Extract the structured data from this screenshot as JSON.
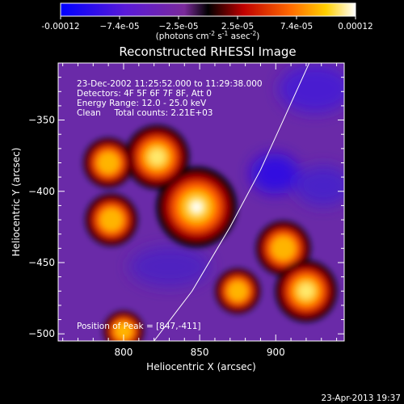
{
  "colorbar": {
    "tick_labels": [
      "-0.00012",
      "−7.4e-05",
      "−2.5e-05",
      "2.5e-05",
      "7.4e-05",
      "0.00012"
    ],
    "units_label": "(photons cm",
    "units_exp1": "-2",
    "units_mid": " s",
    "units_exp2": "-1",
    "units_tail": " asec",
    "units_exp3": "-2",
    "units_close": ")"
  },
  "chart_data": {
    "type": "heatmap",
    "title": "Reconstructed RHESSI Image",
    "xlabel": "Heliocentric X (arcsec)",
    "ylabel": "Heliocentric Y (arcsec)",
    "xlim": [
      757,
      945
    ],
    "ylim": [
      -505,
      -310
    ],
    "x_ticks": [
      800,
      850,
      900
    ],
    "x_tick_labels": [
      "800",
      "850",
      "900"
    ],
    "y_ticks": [
      -350,
      -400,
      -450,
      -500
    ],
    "y_tick_labels": [
      "−350",
      "−400",
      "−450",
      "−500"
    ],
    "colorbar_range": [
      -0.00012,
      0.00012
    ],
    "sources": [
      {
        "x": 848,
        "y": -411,
        "value": 0.000115
      },
      {
        "x": 822,
        "y": -376,
        "value": 8e-05
      },
      {
        "x": 790,
        "y": -380,
        "value": 5e-05
      },
      {
        "x": 792,
        "y": -420,
        "value": 5.5e-05
      },
      {
        "x": 905,
        "y": -440,
        "value": 6e-05
      },
      {
        "x": 920,
        "y": -470,
        "value": 7.5e-05
      },
      {
        "x": 875,
        "y": -470,
        "value": 4e-05
      },
      {
        "x": 800,
        "y": -498,
        "value": 3e-05
      }
    ],
    "limb_curve": [
      [
        820,
        -505
      ],
      [
        845,
        -470
      ],
      [
        870,
        -425
      ],
      [
        890,
        -385
      ],
      [
        905,
        -350
      ],
      [
        922,
        -310
      ]
    ],
    "peak_position": [
      847,
      -411
    ]
  },
  "info": {
    "line1": "23-Dec-2002 11:25:52.000 to 11:29:38.000",
    "line2": "Detectors: 4F 5F 6F 7F 8F, Att 0",
    "line3": "Energy Range: 12.0 - 25.0 keV",
    "line4": "Clean     Total counts: 2.21E+03",
    "peak": "Position of Peak = [847,-411]"
  },
  "footer": {
    "date": "23-Apr-2013 19:37"
  }
}
